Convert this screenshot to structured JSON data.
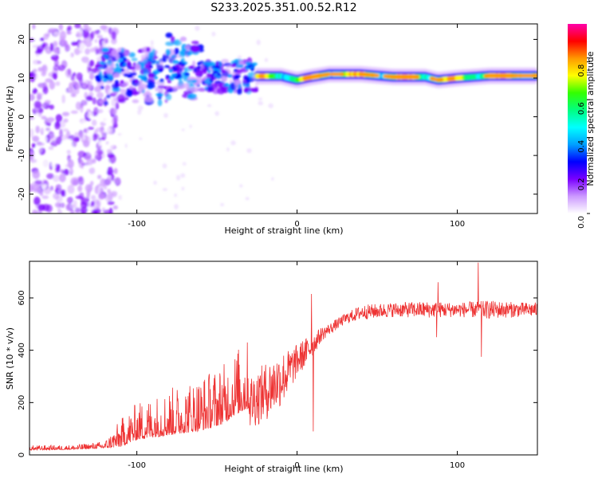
{
  "figure": {
    "title": "S233.2025.351.00.52.R12"
  },
  "chart_data": [
    {
      "type": "heatmap",
      "xlabel": "Height of straight line (km)",
      "ylabel": "Frequency (Hz)",
      "xlim": [
        -167,
        150
      ],
      "ylim": [
        -25,
        24
      ],
      "xticks": [
        -100,
        0,
        100
      ],
      "yticks": [
        -20,
        -10,
        0,
        10,
        20
      ],
      "colorbar": {
        "label": "Normalized spectral amplitude",
        "range": [
          0,
          1
        ],
        "ticks": [
          0.0,
          0.2,
          0.4,
          0.6,
          0.8
        ],
        "colors": [
          "#ffffff",
          "#cc99ff",
          "#7a00ff",
          "#0000ff",
          "#00a0ff",
          "#00ffff",
          "#00ff80",
          "#33ff00",
          "#ffff00",
          "#ff9900",
          "#ff0000",
          "#ff00aa"
        ]
      },
      "features": [
        {
          "description": "diffuse noise",
          "x_range": [
            -167,
            -112
          ],
          "freq_range": [
            -25,
            24
          ],
          "amplitude": 0.15
        },
        {
          "description": "scattered band",
          "x_range": [
            -125,
            -25
          ],
          "freq_range": [
            6,
            16
          ],
          "amplitude": 0.35
        },
        {
          "description": "dominant line",
          "x_range": [
            -25,
            150
          ],
          "freq": [
            10.5,
            10.5,
            9.5,
            10.2,
            11.0,
            11.0,
            10.3,
            10.3,
            9.5,
            10.0,
            10.6,
            10.6
          ],
          "x": [
            -25,
            -10,
            0,
            8,
            20,
            40,
            60,
            80,
            88,
            100,
            120,
            150
          ],
          "amplitude": 0.85
        }
      ]
    },
    {
      "type": "line",
      "xlabel": "Height of straight line (km)",
      "ylabel": "SNR (10 * v/v)",
      "xlim": [
        -167,
        150
      ],
      "ylim": [
        0,
        740
      ],
      "xticks": [
        -100,
        0,
        100
      ],
      "yticks": [
        0,
        200,
        400,
        600
      ],
      "color": "#ee3333",
      "series": [
        {
          "name": "SNR",
          "x": [
            -167,
            -140,
            -120,
            -110,
            -100,
            -80,
            -60,
            -45,
            -40,
            -30,
            -20,
            -10,
            -5,
            0,
            5,
            10,
            15,
            20,
            30,
            40,
            60,
            80,
            100,
            120,
            140,
            150
          ],
          "y": [
            20,
            22,
            28,
            40,
            70,
            90,
            110,
            140,
            170,
            200,
            240,
            290,
            320,
            360,
            390,
            420,
            460,
            480,
            520,
            545,
            555,
            555,
            555,
            555,
            555,
            555
          ],
          "amplitude": [
            10,
            10,
            15,
            60,
            80,
            100,
            120,
            130,
            140,
            150,
            160,
            150,
            120,
            90,
            80,
            60,
            40,
            30,
            30,
            40,
            40,
            45,
            40,
            50,
            40,
            40
          ]
        }
      ],
      "peaks": [
        {
          "x": 9,
          "y": 615
        },
        {
          "x": 10,
          "y": 90
        },
        {
          "x": 113,
          "y": 735
        },
        {
          "x": 115,
          "y": 375
        },
        {
          "x": 88,
          "y": 660
        },
        {
          "x": 87,
          "y": 450
        }
      ]
    }
  ]
}
